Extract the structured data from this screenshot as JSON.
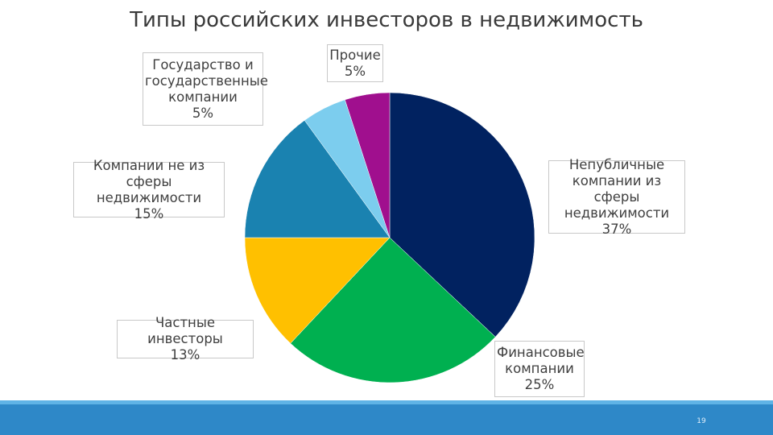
{
  "title": "Типы российских инвесторов в недвижимость",
  "page_number": "19",
  "chart_data": {
    "type": "pie",
    "title": "Типы российских инвесторов в недвижимость",
    "slices": [
      {
        "label_lines": [
          "Непубличные",
          "компании из сферы",
          "недвижимости"
        ],
        "percent_text": "37%",
        "value": 37,
        "color": "#012260"
      },
      {
        "label_lines": [
          "Финансовые",
          "компании"
        ],
        "percent_text": "25%",
        "value": 25,
        "color": "#00b050"
      },
      {
        "label_lines": [
          "Частные инвесторы"
        ],
        "percent_text": "13%",
        "value": 13,
        "color": "#ffc000"
      },
      {
        "label_lines": [
          "Компании не из",
          "сферы недвижимости"
        ],
        "percent_text": "15%",
        "value": 15,
        "color": "#1a82b0"
      },
      {
        "label_lines": [
          "Государство и",
          "государственные",
          "компании"
        ],
        "percent_text": "5%",
        "value": 5,
        "color": "#7ccdee"
      },
      {
        "label_lines": [
          "Прочие"
        ],
        "percent_text": "5%",
        "value": 5,
        "color": "#a00f8e"
      }
    ]
  }
}
